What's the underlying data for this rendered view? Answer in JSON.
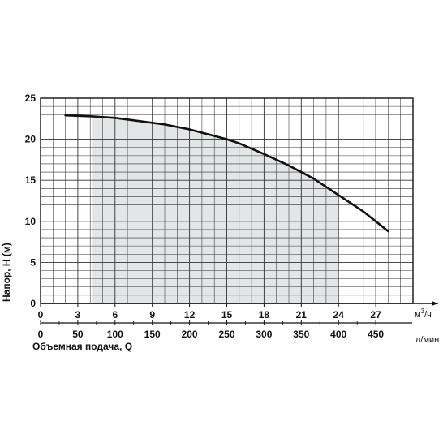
{
  "chart_data": {
    "type": "line",
    "ylabel": "Напор, Н (м)",
    "xlabel_primary_unit": "м³/ч",
    "xlabel_primary_unit_base": "м",
    "xlabel_primary_unit_sup": "3",
    "xlabel_primary_unit_tail": "/ч",
    "xlabel_secondary": "Объемная подача, Q",
    "xlabel_secondary_unit": "л/мин",
    "ylim": [
      0,
      25
    ],
    "xlim_m3h": [
      0,
      30
    ],
    "y_ticks": [
      "0",
      "5",
      "10",
      "15",
      "20",
      "25"
    ],
    "x_ticks_m3h": [
      "0",
      "3",
      "6",
      "9",
      "12",
      "15",
      "18",
      "21",
      "24",
      "27"
    ],
    "x_ticks_lmin": [
      "0",
      "50",
      "100",
      "150",
      "200",
      "250",
      "300",
      "350",
      "400",
      "450"
    ],
    "grid": true,
    "operating_range_m3h": [
      4.2,
      24
    ],
    "series": [
      {
        "x": [
          2.0,
          4.0,
          6.0,
          8.0,
          10.0,
          12.0,
          14.0,
          15.0,
          16.0,
          18.0,
          20.0,
          21.0,
          22.0,
          24.0,
          26.0,
          27.0,
          28.0
        ],
        "y": [
          22.9,
          22.8,
          22.6,
          22.2,
          21.8,
          21.2,
          20.4,
          20.0,
          19.5,
          18.2,
          16.8,
          16.0,
          15.2,
          13.2,
          11.2,
          10.0,
          8.8
        ]
      }
    ]
  }
}
